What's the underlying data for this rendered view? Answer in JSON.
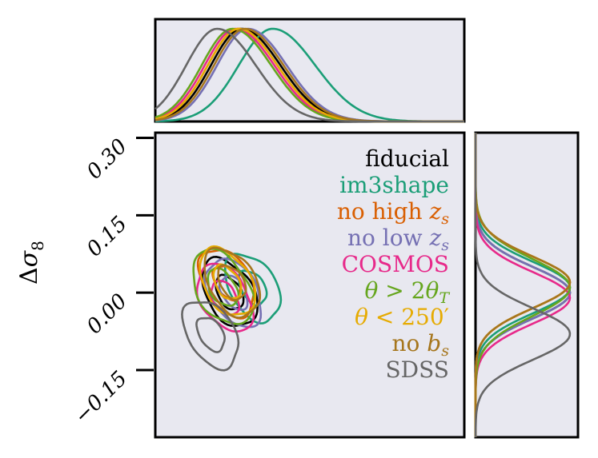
{
  "chart_data": {
    "type": "corner",
    "ylabel": "Δσ₈",
    "y_ticks": [
      0.3,
      0.15,
      0.0,
      -0.15
    ],
    "y_tick_labels": [
      "0.30",
      "0.15",
      "0.00",
      "−0.15"
    ],
    "ylim": [
      -0.28,
      0.31
    ],
    "legend_position": "top-right",
    "series": [
      {
        "name": "fiducial",
        "color": "#000000",
        "sigma8_mean": 0.0,
        "sigma8_sd": 0.05,
        "x_mean": 0.28,
        "x_sd": 0.1
      },
      {
        "name": "im3shape",
        "color": "#1b9e77",
        "sigma8_mean": 0.01,
        "sigma8_sd": 0.05,
        "x_mean": 0.38,
        "x_sd": 0.11
      },
      {
        "name": "no high z_s",
        "color": "#d95f02",
        "sigma8_mean": 0.02,
        "sigma8_sd": 0.05,
        "x_mean": 0.27,
        "x_sd": 0.1
      },
      {
        "name": "no low z_s",
        "color": "#7570b3",
        "sigma8_mean": 0.0,
        "sigma8_sd": 0.05,
        "x_mean": 0.3,
        "x_sd": 0.1
      },
      {
        "name": "COSMOS",
        "color": "#e7298a",
        "sigma8_mean": -0.01,
        "sigma8_sd": 0.05,
        "x_mean": 0.26,
        "x_sd": 0.1
      },
      {
        "name": "θ > 2θ_T",
        "color": "#66a61e",
        "sigma8_mean": 0.01,
        "sigma8_sd": 0.055,
        "x_mean": 0.25,
        "x_sd": 0.1
      },
      {
        "name": "θ < 250′",
        "color": "#e6ab02",
        "sigma8_mean": 0.02,
        "sigma8_sd": 0.05,
        "x_mean": 0.27,
        "x_sd": 0.1
      },
      {
        "name": "no b_s",
        "color": "#a6761d",
        "sigma8_mean": 0.02,
        "sigma8_sd": 0.05,
        "x_mean": 0.29,
        "x_sd": 0.1
      },
      {
        "name": "SDSS",
        "color": "#666666",
        "sigma8_mean": -0.08,
        "sigma8_sd": 0.05,
        "x_mean": 0.2,
        "x_sd": 0.1
      }
    ]
  },
  "legend": [
    {
      "parts": [
        {
          "t": "fiducial",
          "i": false
        }
      ],
      "color": "#000000"
    },
    {
      "parts": [
        {
          "t": "im3shape",
          "i": false
        }
      ],
      "color": "#1b9e77"
    },
    {
      "parts": [
        {
          "t": "no high ",
          "i": false
        },
        {
          "t": "z",
          "i": true
        },
        {
          "t": "s",
          "i": true,
          "sub": true
        }
      ],
      "color": "#d95f02"
    },
    {
      "parts": [
        {
          "t": "no low ",
          "i": false
        },
        {
          "t": "z",
          "i": true
        },
        {
          "t": "s",
          "i": true,
          "sub": true
        }
      ],
      "color": "#7570b3"
    },
    {
      "parts": [
        {
          "t": "COSMOS",
          "i": false
        }
      ],
      "color": "#e7298a"
    },
    {
      "parts": [
        {
          "t": "θ",
          "i": true
        },
        {
          "t": " > 2",
          "i": false
        },
        {
          "t": "θ",
          "i": true
        },
        {
          "t": "T",
          "i": true,
          "sub": true
        }
      ],
      "color": "#66a61e"
    },
    {
      "parts": [
        {
          "t": "θ",
          "i": true
        },
        {
          "t": " < 250′",
          "i": false
        }
      ],
      "color": "#e6ab02"
    },
    {
      "parts": [
        {
          "t": "no ",
          "i": false
        },
        {
          "t": "b",
          "i": true
        },
        {
          "t": "s",
          "i": true,
          "sub": true
        }
      ],
      "color": "#a6761d"
    },
    {
      "parts": [
        {
          "t": "SDSS",
          "i": false
        }
      ],
      "color": "#666666"
    }
  ]
}
